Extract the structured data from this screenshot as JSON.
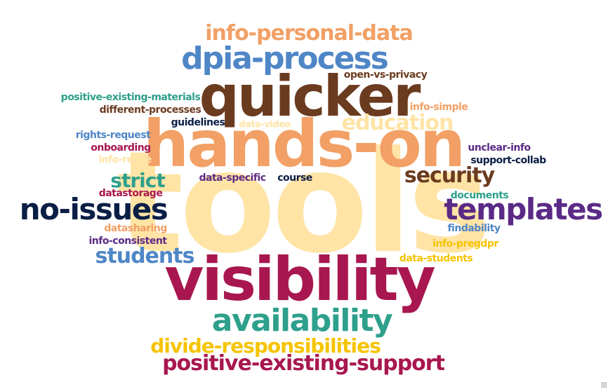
{
  "colors": {
    "peach": "#F2A065",
    "blue": "#4F86C6",
    "brown": "#6B3B1F",
    "cream": "#FFE4A6",
    "teal": "#2EA08C",
    "navy": "#0B1E45",
    "purple": "#5B2A86",
    "crimson": "#A8174F",
    "gold": "#F5C400"
  },
  "words": [
    {
      "text": "tools",
      "color": "cream"
    },
    {
      "text": "hands-on",
      "color": "peach"
    },
    {
      "text": "quicker",
      "color": "brown"
    },
    {
      "text": "visibility",
      "color": "crimson"
    },
    {
      "text": "dpia-process",
      "color": "blue"
    },
    {
      "text": "info-personal-data",
      "color": "peach"
    },
    {
      "text": "templates",
      "color": "purple"
    },
    {
      "text": "no-issues",
      "color": "navy"
    },
    {
      "text": "availability",
      "color": "teal"
    },
    {
      "text": "divide-responsibilities",
      "color": "gold"
    },
    {
      "text": "positive-existing-support",
      "color": "crimson"
    },
    {
      "text": "education",
      "color": "cream"
    },
    {
      "text": "security",
      "color": "brown"
    },
    {
      "text": "strict",
      "color": "teal"
    },
    {
      "text": "students",
      "color": "blue"
    },
    {
      "text": "open-vs-privacy",
      "color": "brown"
    },
    {
      "text": "positive-existing-materials",
      "color": "teal"
    },
    {
      "text": "different-processes",
      "color": "brown"
    },
    {
      "text": "info-simple",
      "color": "peach"
    },
    {
      "text": "guidelines",
      "color": "navy"
    },
    {
      "text": "data-video",
      "color": "cream"
    },
    {
      "text": "rights-request",
      "color": "blue"
    },
    {
      "text": "onboarding",
      "color": "crimson"
    },
    {
      "text": "info-reuse",
      "color": "cream"
    },
    {
      "text": "unclear-info",
      "color": "purple"
    },
    {
      "text": "support-collab",
      "color": "navy"
    },
    {
      "text": "data-specific",
      "color": "purple"
    },
    {
      "text": "course",
      "color": "navy"
    },
    {
      "text": "datastorage",
      "color": "crimson"
    },
    {
      "text": "documents",
      "color": "teal"
    },
    {
      "text": "datasharing",
      "color": "peach"
    },
    {
      "text": "findability",
      "color": "blue"
    },
    {
      "text": "info-consistent",
      "color": "purple"
    },
    {
      "text": "info-pregdpr",
      "color": "gold"
    },
    {
      "text": "data-students",
      "color": "gold"
    }
  ]
}
